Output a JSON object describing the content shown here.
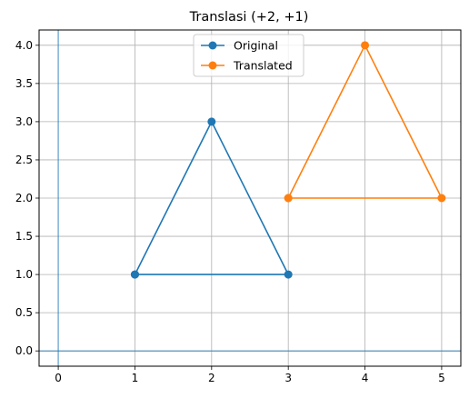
{
  "chart_data": {
    "type": "line",
    "title": "Translasi (+2, +1)",
    "xlabel": "",
    "ylabel": "",
    "xlim": [
      -0.25,
      5.25
    ],
    "ylim": [
      -0.2,
      4.2
    ],
    "xticks": [
      0,
      1,
      2,
      3,
      4,
      5
    ],
    "xtick_labels": [
      "0",
      "1",
      "2",
      "3",
      "4",
      "5"
    ],
    "yticks": [
      0.0,
      0.5,
      1.0,
      1.5,
      2.0,
      2.5,
      3.0,
      3.5,
      4.0
    ],
    "ytick_labels": [
      "0.0",
      "0.5",
      "1.0",
      "1.5",
      "2.0",
      "2.5",
      "3.0",
      "3.5",
      "4.0"
    ],
    "grid": true,
    "axis_lines": {
      "x": 0,
      "y": 0
    },
    "legend": {
      "placement": "top-center"
    },
    "series": [
      {
        "name": "Original",
        "color": "#1f77b4",
        "x": [
          1,
          2,
          3,
          1
        ],
        "y": [
          1,
          3,
          1,
          1
        ]
      },
      {
        "name": "Translated",
        "color": "#ff7f0e",
        "x": [
          3,
          4,
          5,
          3
        ],
        "y": [
          2,
          4,
          2,
          2
        ]
      }
    ]
  }
}
